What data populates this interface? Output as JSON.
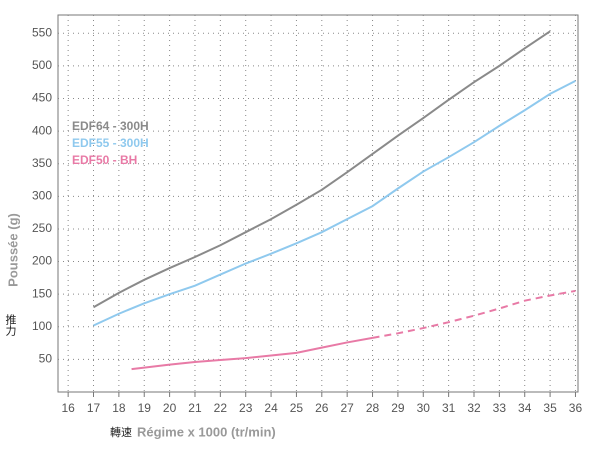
{
  "chart_data": {
    "type": "line",
    "y_label": "Poussée (g)",
    "y_label_cn": "推力",
    "x_label": "Régime x 1000 (tr/min)",
    "x_label_cn": "轉速",
    "xlim": [
      15.6,
      36.1
    ],
    "xticks": [
      16,
      17,
      18,
      19,
      20,
      21,
      22,
      23,
      24,
      25,
      26,
      27,
      28,
      29,
      30,
      31,
      32,
      33,
      34,
      35,
      36
    ],
    "ylim": [
      0,
      578
    ],
    "yticks": [
      50,
      100,
      150,
      200,
      250,
      300,
      350,
      400,
      450,
      500,
      550
    ],
    "grid": true,
    "legend": "upper left",
    "series": [
      {
        "name": "EDF64 - 300H",
        "color": "#8a8a8a",
        "x": [
          17,
          18,
          19,
          20,
          21,
          22,
          23,
          24,
          25,
          26,
          27,
          28,
          29,
          30,
          31,
          32,
          33,
          34,
          35
        ],
        "values": [
          130,
          152,
          172,
          190,
          207,
          225,
          245,
          265,
          287,
          310,
          337,
          365,
          393,
          420,
          448,
          475,
          500,
          527,
          553
        ]
      },
      {
        "name": "EDF55 - 300H",
        "color": "#8fc9ee",
        "x": [
          17,
          18,
          19,
          20,
          21,
          22,
          23,
          24,
          25,
          26,
          27,
          28,
          29,
          30,
          31,
          32,
          33,
          34,
          35,
          36
        ],
        "values": [
          102,
          120,
          136,
          150,
          163,
          180,
          197,
          212,
          228,
          245,
          265,
          285,
          312,
          338,
          360,
          383,
          408,
          432,
          457,
          477
        ]
      },
      {
        "name": "EDF50 - BH",
        "color": "#e87aa6",
        "dashed_from_x": 28,
        "x": [
          18.5,
          20,
          21,
          22,
          23,
          24,
          25,
          26,
          27,
          28,
          29,
          30,
          31,
          32,
          33,
          34,
          35,
          36
        ],
        "values": [
          35,
          42,
          46,
          49,
          52,
          56,
          60,
          68,
          76,
          83,
          90,
          98,
          107,
          117,
          128,
          140,
          148,
          155
        ]
      }
    ]
  }
}
